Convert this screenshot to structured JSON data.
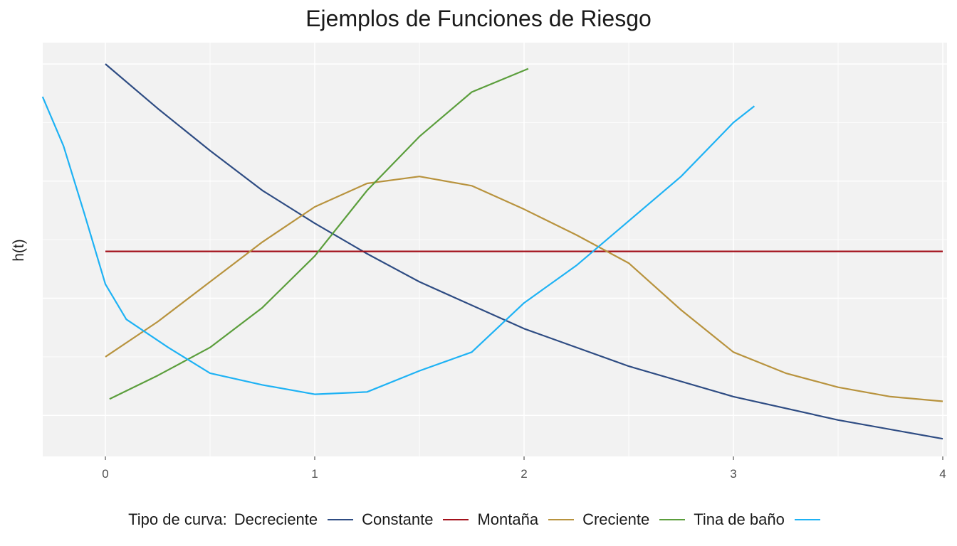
{
  "chart_data": {
    "type": "line",
    "title": "Ejemplos de Funciones de Riesgo",
    "xlabel": "",
    "ylabel": "h(t)",
    "xlim": [
      -0.3,
      4.02
    ],
    "ylim": [
      -0.05,
      2.0
    ],
    "x_ticks": [
      "0",
      "1",
      "2",
      "3",
      "4"
    ],
    "y_ticks_shown": false,
    "grid": true,
    "legend": {
      "title": "Tipo de curva:",
      "position": "bottom"
    },
    "series": [
      {
        "name": "Decreciente",
        "color": "#2E4C83",
        "x": [
          0,
          0.25,
          0.5,
          0.75,
          1,
          1.25,
          1.5,
          1.75,
          2,
          2.5,
          3,
          3.5,
          4
        ],
        "y": [
          2.0,
          1.81,
          1.63,
          1.46,
          1.32,
          1.19,
          1.07,
          0.97,
          0.87,
          0.71,
          0.58,
          0.48,
          0.4
        ]
      },
      {
        "name": "Constante",
        "color": "#A3111B",
        "x": [
          0,
          4
        ],
        "y": [
          1.2,
          1.2
        ]
      },
      {
        "name": "Montaña",
        "color": "#B8933E",
        "x": [
          0,
          0.25,
          0.5,
          0.75,
          1,
          1.25,
          1.5,
          1.75,
          2,
          2.25,
          2.5,
          2.75,
          3,
          3.25,
          3.5,
          3.75,
          4
        ],
        "y": [
          0.75,
          0.9,
          1.07,
          1.24,
          1.39,
          1.49,
          1.52,
          1.48,
          1.38,
          1.27,
          1.15,
          0.95,
          0.77,
          0.68,
          0.62,
          0.58,
          0.56
        ]
      },
      {
        "name": "Creciente",
        "color": "#5B9E3C",
        "x": [
          0.02,
          0.25,
          0.5,
          0.75,
          1,
          1.25,
          1.5,
          1.75,
          2.02
        ],
        "y": [
          0.57,
          0.67,
          0.79,
          0.96,
          1.18,
          1.46,
          1.69,
          1.88,
          1.98
        ]
      },
      {
        "name": "Tina de baño",
        "color": "#1EB2F4",
        "x": [
          -0.3,
          -0.2,
          -0.1,
          0,
          0.1,
          0.3,
          0.5,
          0.75,
          1,
          1.25,
          1.5,
          1.75,
          2,
          2.25,
          2.5,
          2.75,
          3,
          3.1
        ],
        "y": [
          1.86,
          1.65,
          1.36,
          1.06,
          0.91,
          0.79,
          0.68,
          0.63,
          0.59,
          0.6,
          0.69,
          0.77,
          0.98,
          1.14,
          1.33,
          1.52,
          1.75,
          1.82
        ]
      }
    ]
  }
}
